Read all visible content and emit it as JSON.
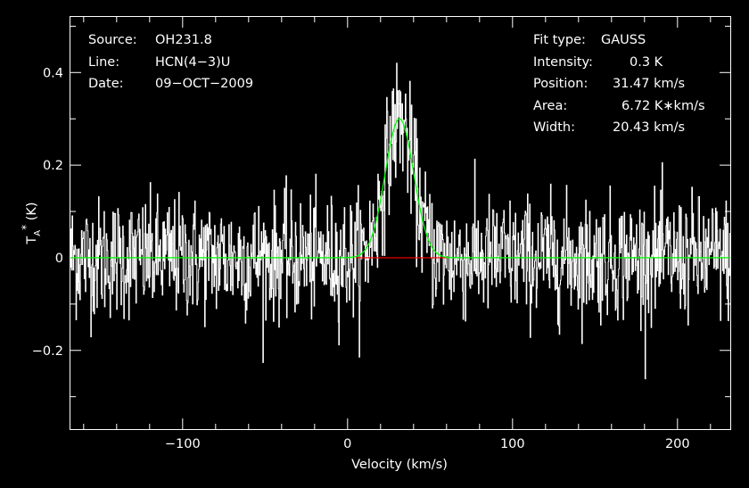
{
  "header": {
    "left": [
      {
        "key": "Source:",
        "value": "OH231.8"
      },
      {
        "key": "Line:",
        "value": "HCN(4−3)U"
      },
      {
        "key": "Date:",
        "value": "09−OCT−2009"
      }
    ],
    "right": [
      {
        "key": "Fit type:",
        "value": "GAUSS"
      },
      {
        "key": "Intensity:",
        "value": "0.3 K"
      },
      {
        "key": "Position:",
        "value": "31.47 km/s"
      },
      {
        "key": "Area:",
        "value": "6.72 K∗km/s"
      },
      {
        "key": "Width:",
        "value": "20.43 km/s"
      }
    ]
  },
  "chart_data": {
    "type": "line",
    "title": "",
    "xlabel": "Velocity (km/s)",
    "ylabel": "T_A^* (K)",
    "xlim": [
      -168,
      232
    ],
    "ylim": [
      -0.37,
      0.52
    ],
    "xticks": [
      {
        "value": -100,
        "label": "−100"
      },
      {
        "value": 0,
        "label": "0"
      },
      {
        "value": 100,
        "label": "100"
      },
      {
        "value": 200,
        "label": "200"
      }
    ],
    "yticks": [
      {
        "value": -0.2,
        "label": "−0.2"
      },
      {
        "value": 0,
        "label": "0"
      },
      {
        "value": 0.2,
        "label": "0.2"
      },
      {
        "value": 0.4,
        "label": "0.4"
      }
    ],
    "spectrum": {
      "color": "#ffffff",
      "x_start": -168,
      "x_end": 232,
      "channels": 1200,
      "noise_rms": 0.065,
      "peak": 0.3,
      "peak_velocity": 31.47,
      "width": 20.43
    },
    "fit": {
      "type": "gauss",
      "color": "#00ff00",
      "amplitude": 0.3,
      "center": 31.47,
      "fwhm": 20.43
    },
    "baseline_window": {
      "color": "#ff0000",
      "x": [
        5,
        60
      ],
      "y": 0
    }
  }
}
